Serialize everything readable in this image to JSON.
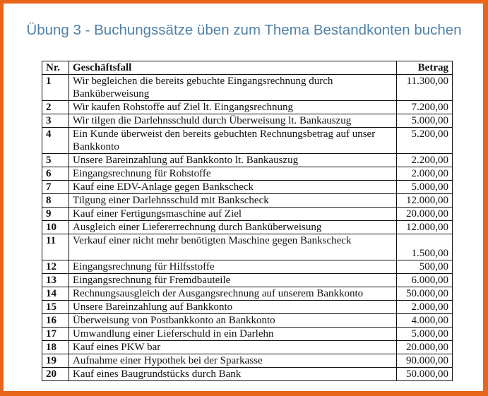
{
  "title": "Übung 3 - Buchungssätze üben zum Thema Bestandkonten buchen",
  "table": {
    "headers": {
      "nr": "Nr.",
      "case": "Geschäftsfall",
      "amount": "Betrag"
    },
    "rows": [
      {
        "nr": "1",
        "case": "Wir begleichen die bereits gebuchte Eingangsrechnung durch Banküberweisung",
        "amount": "11.300,00"
      },
      {
        "nr": "2",
        "case": "Wir kaufen Rohstoffe auf Ziel lt. Eingangsrechnung",
        "amount": "7.200,00"
      },
      {
        "nr": "3",
        "case": "Wir tilgen die Darlehnsschuld durch Überweisung lt. Bankauszug",
        "amount": "5.000,00"
      },
      {
        "nr": "4",
        "case": "Ein Kunde überweist den bereits gebuchten Rechnungsbetrag auf unser Bankkonto",
        "amount": "5.200,00"
      },
      {
        "nr": "5",
        "case": "Unsere Bareinzahlung auf Bankkonto lt. Bankauszug",
        "amount": "2.200,00"
      },
      {
        "nr": "6",
        "case": "Eingangsrechnung für Rohstoffe",
        "amount": "2.000,00"
      },
      {
        "nr": "7",
        "case": "Kauf eine EDV-Anlage gegen Bankscheck",
        "amount": "5.000,00"
      },
      {
        "nr": "8",
        "case": "Tilgung einer Darlehnsschuld mit Bankscheck",
        "amount": "12.000,00"
      },
      {
        "nr": "9",
        "case": "Kauf einer Fertigungsmaschine auf Ziel",
        "amount": "20.000,00"
      },
      {
        "nr": "10",
        "case": "Ausgleich einer Liefererrechnung durch Banküberweisung",
        "amount": "12.000,00"
      },
      {
        "nr": "11",
        "case": "Verkauf einer nicht mehr benötigten Maschine gegen Bankscheck",
        "amount": "1.500,00"
      },
      {
        "nr": "12",
        "case": "Eingangsrechnung für Hilfsstoffe",
        "amount": "500,00"
      },
      {
        "nr": "13",
        "case": "Eingangsrechnung für Fremdbauteile",
        "amount": "6.000,00"
      },
      {
        "nr": "14",
        "case": "Rechnungsausgleich der Ausgangsrechnung auf unserem Bankkonto",
        "amount": "50.000,00"
      },
      {
        "nr": "15",
        "case": "Unsere Bareinzahlung auf Bankkonto",
        "amount": "2.000,00"
      },
      {
        "nr": "16",
        "case": "Überweisung von Postbankkonto an Bankkonto",
        "amount": "4.000,00"
      },
      {
        "nr": "17",
        "case": "Umwandlung einer Lieferschuld in ein Darlehn",
        "amount": "5.000,00"
      },
      {
        "nr": "18",
        "case": "Kauf eines PKW bar",
        "amount": "20.000,00"
      },
      {
        "nr": "19",
        "case": "Aufnahme einer Hypothek bei der Sparkasse",
        "amount": "90.000,00"
      },
      {
        "nr": "20",
        "case": "Kauf eines Baugrundstücks durch Bank",
        "amount": "50.000,00"
      }
    ]
  },
  "colors": {
    "frame": "#e8651a",
    "title": "#4f81a8"
  }
}
